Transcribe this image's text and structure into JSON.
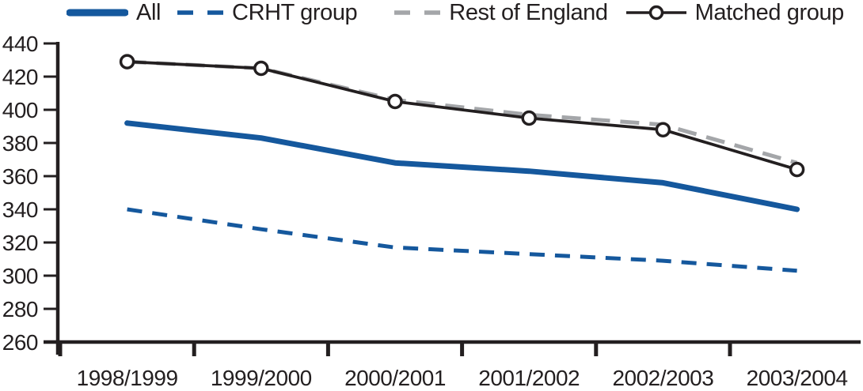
{
  "chart_data": {
    "type": "line",
    "title": "",
    "xlabel": "",
    "ylabel": "",
    "categories": [
      "1998/1999",
      "1999/2000",
      "2000/2001",
      "2001/2002",
      "2002/2003",
      "2003/2004"
    ],
    "series": [
      {
        "name": "All",
        "values": [
          392,
          383,
          368,
          363,
          356,
          340
        ],
        "color": "#15589d",
        "style": "solid-thick"
      },
      {
        "name": "CRHT group",
        "values": [
          340,
          328,
          317,
          313,
          309,
          303
        ],
        "color": "#15589d",
        "style": "dashed",
        "dash": "19 13"
      },
      {
        "name": "Rest of England",
        "values": [
          429,
          425,
          406,
          397,
          391,
          368
        ],
        "color": "#a4a6a9",
        "style": "dashed",
        "dash": "24 13"
      },
      {
        "name": "Matched group",
        "values": [
          429,
          425,
          405,
          395,
          388,
          364
        ],
        "color": "#231f20",
        "style": "solid",
        "marker": "open-circle"
      }
    ],
    "ylim": [
      260,
      440
    ],
    "yticks": [
      260,
      280,
      300,
      320,
      340,
      360,
      380,
      400,
      420,
      440
    ],
    "grid": false,
    "legend_position": "top",
    "axis_color": "#231f20",
    "text_color": "#231f20",
    "marker_fill": "#ffffff"
  }
}
